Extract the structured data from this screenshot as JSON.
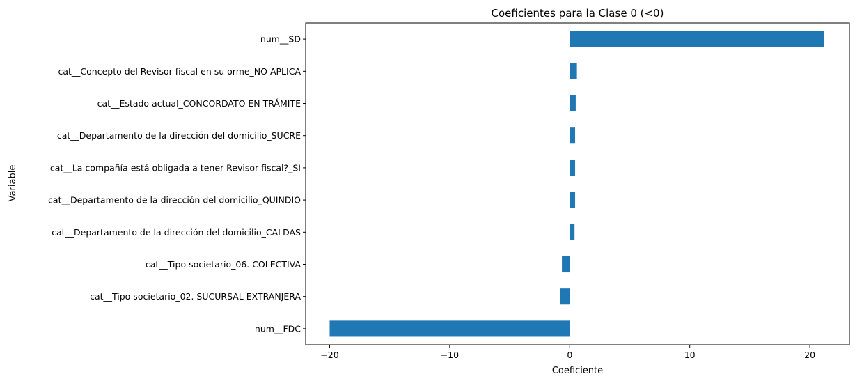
{
  "chart_data": {
    "type": "bar",
    "orientation": "horizontal",
    "title": "Coeficientes para la Clase 0 (<0)",
    "xlabel": "Coeficiente",
    "ylabel": "Variable",
    "categories": [
      "num__SD",
      "cat__Concepto del Revisor fiscal en su orme_NO APLICA",
      "cat__Estado actual_CONCORDATO EN TRÁMITE",
      "cat__Departamento de la dirección del domicilio_SUCRE",
      "cat__La compañía está obligada a tener Revisor fiscal?_SI",
      "cat__Departamento de la dirección del domicilio_QUINDIO",
      "cat__Departamento de la dirección del domicilio_CALDAS",
      "cat__Tipo societario_06. COLECTIVA",
      "cat__Tipo societario_02. SUCURSAL EXTRANJERA",
      "num__FDC"
    ],
    "values": [
      21.2,
      0.6,
      0.5,
      0.45,
      0.45,
      0.45,
      0.4,
      -0.65,
      -0.8,
      -20.0
    ],
    "xlim": [
      -22.0,
      23.3
    ],
    "xticks": [
      -20,
      -10,
      0,
      10,
      20
    ],
    "xtick_labels": [
      "−20",
      "−10",
      "0",
      "10",
      "20"
    ],
    "bar_color": "#1f77b4",
    "grid": false,
    "legend": "none"
  }
}
